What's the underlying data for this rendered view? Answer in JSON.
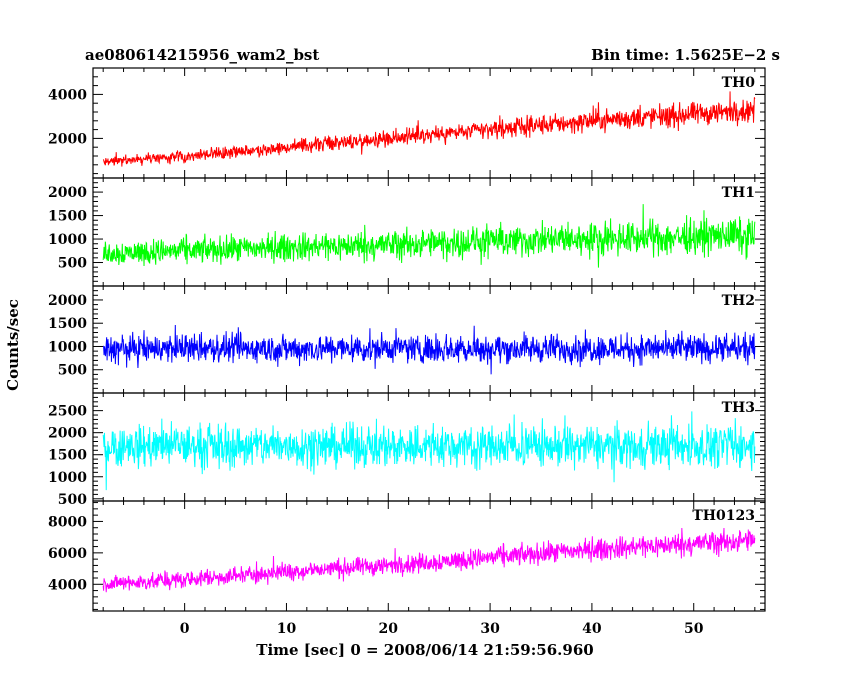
{
  "chart_data": {
    "type": "line",
    "title": "ae080614215956_wam2_bst",
    "subtitle": "Bin time: 1.5625E−2 s",
    "xlabel": "Time [sec] 0 = 2008/06/14 21:59:56.960",
    "ylabel": "Counts/sec",
    "xlim": [
      -9,
      57
    ],
    "x_ticks": [
      0,
      10,
      20,
      30,
      40,
      50
    ],
    "x_data_range": [
      -8,
      56
    ],
    "grid": false,
    "panels": [
      {
        "name": "TH0",
        "color": "#ff0000",
        "ylim": [
          200,
          5200
        ],
        "y_ticks": [
          2000,
          4000
        ],
        "points": [
          [
            -8,
            950
          ],
          [
            0,
            1200
          ],
          [
            10,
            1600
          ],
          [
            20,
            2000
          ],
          [
            30,
            2400
          ],
          [
            40,
            2800
          ],
          [
            50,
            3100
          ],
          [
            56,
            3300
          ]
        ],
        "noise_amplitude": [
          350,
          800
        ]
      },
      {
        "name": "TH1",
        "color": "#00ff00",
        "ylim": [
          0,
          2300
        ],
        "y_ticks": [
          500,
          1000,
          1500,
          2000
        ],
        "points": [
          [
            -8,
            700
          ],
          [
            0,
            750
          ],
          [
            10,
            820
          ],
          [
            20,
            880
          ],
          [
            30,
            950
          ],
          [
            40,
            1000
          ],
          [
            50,
            1050
          ],
          [
            56,
            1080
          ]
        ],
        "noise_amplitude": [
          380,
          550
        ]
      },
      {
        "name": "TH2",
        "color": "#0000ff",
        "ylim": [
          0,
          2300
        ],
        "y_ticks": [
          500,
          1000,
          1500,
          2000
        ],
        "points": [
          [
            -8,
            950
          ],
          [
            0,
            960
          ],
          [
            10,
            950
          ],
          [
            20,
            960
          ],
          [
            30,
            950
          ],
          [
            40,
            960
          ],
          [
            50,
            950
          ],
          [
            56,
            950
          ]
        ],
        "noise_amplitude": [
          450,
          450
        ]
      },
      {
        "name": "TH3",
        "color": "#00ffff",
        "ylim": [
          450,
          2900
        ],
        "y_ticks": [
          500,
          1000,
          1500,
          2000,
          2500
        ],
        "points": [
          [
            -8,
            1700
          ],
          [
            0,
            1700
          ],
          [
            10,
            1700
          ],
          [
            20,
            1700
          ],
          [
            30,
            1700
          ],
          [
            40,
            1700
          ],
          [
            50,
            1700
          ],
          [
            56,
            1700
          ]
        ],
        "noise_amplitude": [
          700,
          700
        ]
      },
      {
        "name": "TH0123",
        "color": "#ff00ff",
        "ylim": [
          2300,
          9300
        ],
        "y_ticks": [
          4000,
          6000,
          8000
        ],
        "points": [
          [
            -8,
            4000
          ],
          [
            0,
            4300
          ],
          [
            10,
            4800
          ],
          [
            20,
            5200
          ],
          [
            30,
            5700
          ],
          [
            40,
            6200
          ],
          [
            50,
            6600
          ],
          [
            56,
            6800
          ]
        ],
        "noise_amplitude": [
          750,
          1100
        ]
      }
    ]
  }
}
